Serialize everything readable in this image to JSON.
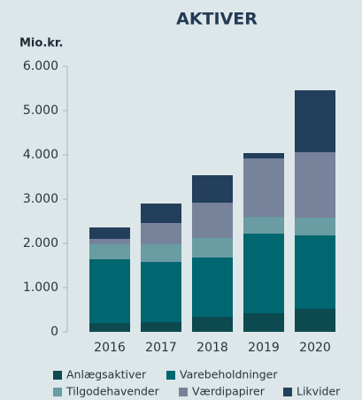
{
  "chart_data": {
    "type": "stacked_bar",
    "title": "AKTIVER",
    "y_label": "Mio.kr.",
    "categories": [
      "2016",
      "2017",
      "2018",
      "2019",
      "2020"
    ],
    "series": [
      {
        "name": "Anlægsaktiver",
        "color": "#0c4a4f",
        "values": [
          200,
          220,
          340,
          420,
          520
        ]
      },
      {
        "name": "Varebeholdninger",
        "color": "#006670",
        "values": [
          1440,
          1360,
          1340,
          1800,
          1660
        ]
      },
      {
        "name": "Tilgodehavender",
        "color": "#6a9ca3",
        "values": [
          340,
          400,
          440,
          380,
          400
        ]
      },
      {
        "name": "Værdipapirer",
        "color": "#77829b",
        "values": [
          120,
          480,
          800,
          1320,
          1480
        ]
      },
      {
        "name": "Likvider",
        "color": "#243f5c",
        "values": [
          260,
          440,
          620,
          120,
          1400
        ]
      }
    ],
    "ylim": [
      0,
      6000
    ],
    "yticks": [
      0,
      {
        "value": 1000,
        "label": "1.000"
      },
      {
        "value": 2000,
        "label": "2.000"
      },
      {
        "value": 3000,
        "label": "3.000"
      },
      {
        "value": 4000,
        "label": "4.000"
      },
      {
        "value": 5000,
        "label": "5.000"
      },
      {
        "value": 6000,
        "label": "6.000"
      }
    ]
  }
}
